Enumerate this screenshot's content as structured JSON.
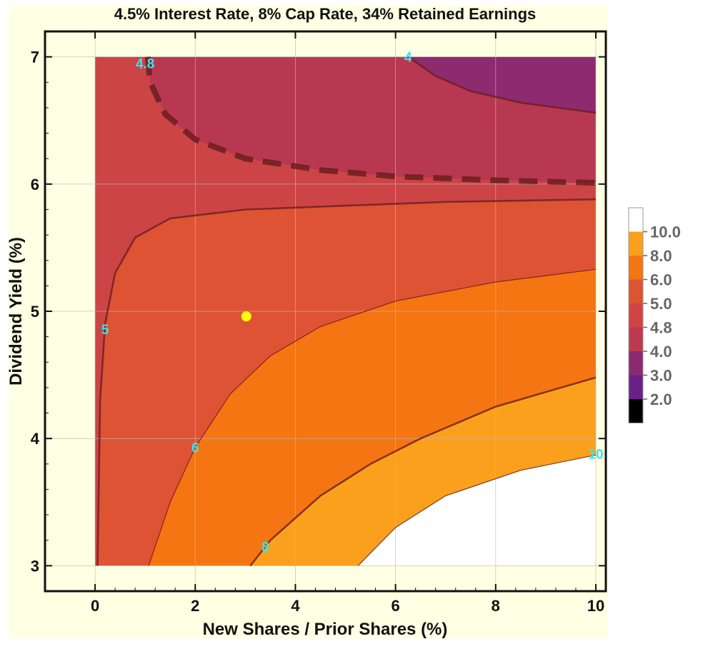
{
  "chart_data": {
    "type": "contour",
    "title": "4.5% Interest Rate, 8% Cap Rate, 34% Retained Earnings",
    "xlabel": "New Shares / Prior Shares (%)",
    "ylabel": "Dividend Yield (%)",
    "xlim": [
      -1,
      10.2
    ],
    "ylim": [
      2.8,
      7.2
    ],
    "data_region": {
      "x": [
        0,
        10
      ],
      "y": [
        3,
        7
      ]
    },
    "xticks": [
      "0",
      "2",
      "4",
      "6",
      "8",
      "10"
    ],
    "yticks": [
      "3",
      "4",
      "5",
      "6",
      "7"
    ],
    "grid": true,
    "contour_labels": [
      {
        "text": "4.8",
        "x": 1.0,
        "y": 6.95,
        "level": 4.8,
        "style": "dashed"
      },
      {
        "text": "4",
        "x": 6.25,
        "y": 7.0,
        "level": 4.0,
        "style": "solid"
      },
      {
        "text": "5",
        "x": 0.2,
        "y": 4.86,
        "level": 5.0,
        "style": "solid"
      },
      {
        "text": "6",
        "x": 2.0,
        "y": 3.93,
        "level": 6.0,
        "style": "thin"
      },
      {
        "text": "8",
        "x": 3.4,
        "y": 3.15,
        "level": 8.0,
        "style": "solid"
      },
      {
        "text": "10",
        "x": 10.0,
        "y": 3.88,
        "level": 10.0,
        "style": "thin"
      }
    ],
    "contours": [
      {
        "level": 4.0,
        "points": [
          [
            6.25,
            7.0
          ],
          [
            6.8,
            6.85
          ],
          [
            7.5,
            6.73
          ],
          [
            8.5,
            6.64
          ],
          [
            10.0,
            6.56
          ]
        ]
      },
      {
        "level": 4.8,
        "points": [
          [
            1.05,
            7.0
          ],
          [
            1.1,
            6.8
          ],
          [
            1.4,
            6.55
          ],
          [
            2.0,
            6.35
          ],
          [
            3.0,
            6.2
          ],
          [
            4.5,
            6.11
          ],
          [
            6.0,
            6.06
          ],
          [
            8.0,
            6.03
          ],
          [
            10.0,
            6.01
          ]
        ]
      },
      {
        "level": 5.0,
        "points": [
          [
            0.05,
            3.0
          ],
          [
            0.1,
            4.3
          ],
          [
            0.2,
            4.9
          ],
          [
            0.4,
            5.3
          ],
          [
            0.8,
            5.58
          ],
          [
            1.5,
            5.73
          ],
          [
            3.0,
            5.8
          ],
          [
            5.0,
            5.83
          ],
          [
            7.0,
            5.86
          ],
          [
            10.0,
            5.88
          ]
        ]
      },
      {
        "level": 6.0,
        "points": [
          [
            1.07,
            3.0
          ],
          [
            1.5,
            3.5
          ],
          [
            2.0,
            3.93
          ],
          [
            2.7,
            4.35
          ],
          [
            3.5,
            4.65
          ],
          [
            4.5,
            4.88
          ],
          [
            6.0,
            5.08
          ],
          [
            8.0,
            5.23
          ],
          [
            10.0,
            5.33
          ]
        ]
      },
      {
        "level": 8.0,
        "points": [
          [
            3.1,
            3.0
          ],
          [
            3.5,
            3.2
          ],
          [
            4.5,
            3.55
          ],
          [
            5.5,
            3.8
          ],
          [
            6.5,
            4.0
          ],
          [
            8.0,
            4.25
          ],
          [
            10.0,
            4.48
          ]
        ]
      },
      {
        "level": 10.0,
        "points": [
          [
            5.25,
            3.0
          ],
          [
            6.0,
            3.3
          ],
          [
            7.0,
            3.55
          ],
          [
            8.5,
            3.75
          ],
          [
            10.0,
            3.87
          ]
        ]
      }
    ],
    "marker": {
      "x": 3.02,
      "y": 4.96,
      "color": "#ffff00"
    },
    "legend": {
      "placement": "right",
      "bins": [
        {
          "label": "10.0",
          "color": "#ffffff"
        },
        {
          "label": "8.0",
          "color": "#fba01c"
        },
        {
          "label": "6.0",
          "color": "#f57512"
        },
        {
          "label": "5.0",
          "color": "#dc5431"
        },
        {
          "label": "4.8",
          "color": "#d24443"
        },
        {
          "label": "4.0",
          "color": "#bc3950"
        },
        {
          "label": "3.0",
          "color": "#8a2a70"
        },
        {
          "label": "2.0",
          "color": "#6b1f88"
        },
        {
          "label": "",
          "color": "#000000"
        }
      ]
    },
    "colors": {
      "background": "#ffffe3",
      "region_lt4": "#8e2a6e",
      "region_4_48": "#b83852",
      "region_48_5": "#cd4446",
      "region_5_6": "#de5334",
      "region_6_8": "#f57512",
      "region_8_10": "#fba01c",
      "region_gt10": "#ffffff",
      "contour_line": "#6b1f1f",
      "contour_label": "#33e6f0"
    }
  }
}
